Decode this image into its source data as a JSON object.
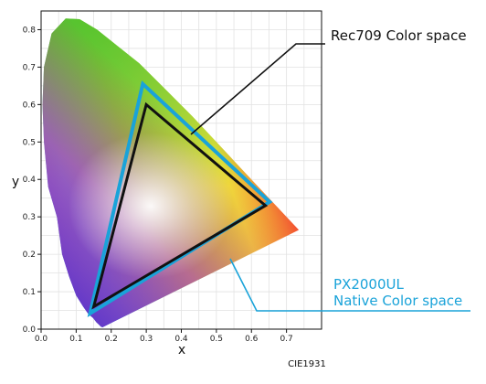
{
  "chart_data": {
    "type": "line",
    "xlabel": "x",
    "ylabel": "y",
    "xlim": [
      0.0,
      0.8
    ],
    "ylim": [
      0.0,
      0.85
    ],
    "x_ticks": [
      "0.0",
      "0.1",
      "0.2",
      "0.3",
      "0.4",
      "0.5",
      "0.6",
      "0.7"
    ],
    "y_ticks": [
      "0.0",
      "0.1",
      "0.2",
      "0.3",
      "0.4",
      "0.5",
      "0.6",
      "0.7",
      "0.8"
    ],
    "grid": true,
    "source_label": "CIE1931",
    "spectral_locus": [
      [
        0.175,
        0.005
      ],
      [
        0.17,
        0.007
      ],
      [
        0.165,
        0.012
      ],
      [
        0.158,
        0.018
      ],
      [
        0.148,
        0.03
      ],
      [
        0.135,
        0.04
      ],
      [
        0.12,
        0.06
      ],
      [
        0.1,
        0.09
      ],
      [
        0.08,
        0.14
      ],
      [
        0.06,
        0.2
      ],
      [
        0.045,
        0.3
      ],
      [
        0.02,
        0.38
      ],
      [
        0.008,
        0.5
      ],
      [
        0.004,
        0.6
      ],
      [
        0.008,
        0.7
      ],
      [
        0.03,
        0.79
      ],
      [
        0.07,
        0.83
      ],
      [
        0.11,
        0.828
      ],
      [
        0.16,
        0.8
      ],
      [
        0.22,
        0.755
      ],
      [
        0.28,
        0.71
      ],
      [
        0.35,
        0.645
      ],
      [
        0.43,
        0.57
      ],
      [
        0.5,
        0.5
      ],
      [
        0.57,
        0.43
      ],
      [
        0.64,
        0.36
      ],
      [
        0.735,
        0.265
      ]
    ],
    "gamuts": [
      {
        "name": "Rec709  Color space",
        "color": "#111111",
        "vertices": [
          [
            0.64,
            0.33
          ],
          [
            0.3,
            0.6
          ],
          [
            0.15,
            0.06
          ]
        ]
      },
      {
        "name": "PX2000UL Native Color space",
        "label_lines": [
          "PX2000UL",
          "Native Color space"
        ],
        "color": "#1aa3d9",
        "vertices": [
          [
            0.652,
            0.34
          ],
          [
            0.29,
            0.655
          ],
          [
            0.14,
            0.042
          ]
        ]
      }
    ],
    "annotations": [
      {
        "text": "Rec709  Color space",
        "points_to": [
          0.405,
          0.52
        ]
      },
      {
        "text": "PX2000UL Native Color space",
        "points_to": [
          0.505,
          0.175
        ]
      }
    ]
  }
}
